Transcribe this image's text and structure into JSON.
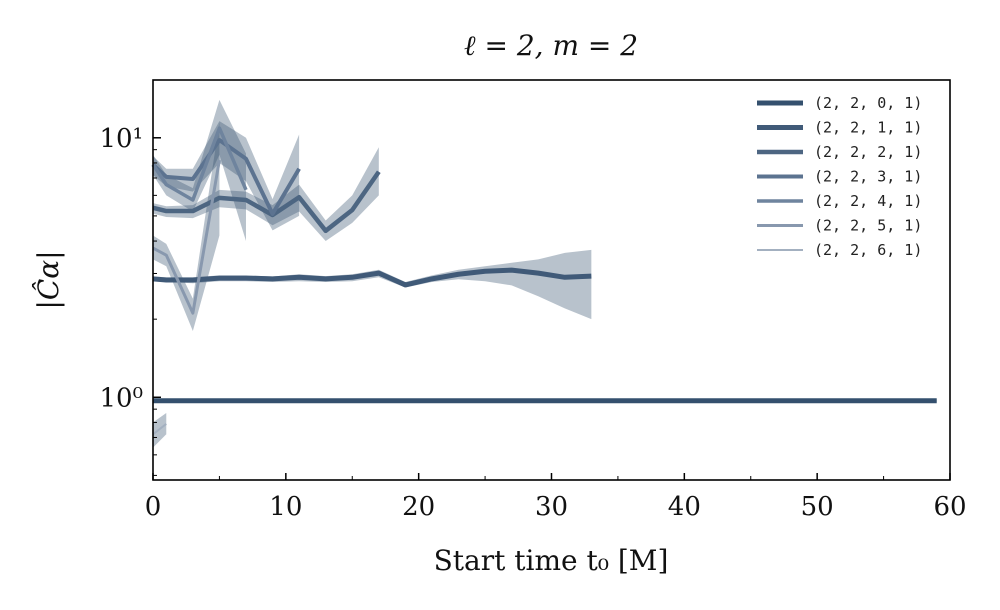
{
  "chart_data": {
    "type": "line",
    "title": "ℓ = 2, m = 2",
    "xlabel": "Start time t₀ [M]",
    "ylabel": "|Ĉα|",
    "xlim": [
      0,
      60
    ],
    "ylim": [
      0.48,
      16.7
    ],
    "yscale": "log",
    "xticks": [
      0,
      10,
      20,
      30,
      40,
      50,
      60
    ],
    "yticks": [
      {
        "v": 1,
        "label": "10⁰"
      },
      {
        "v": 10,
        "label": "10¹"
      }
    ],
    "legend_position": "top-right",
    "series": [
      {
        "name": "(2, 2, 0, 1)",
        "color": "#34506e",
        "x": [
          0,
          59
        ],
        "y": [
          0.97,
          0.97
        ],
        "lo": [
          0.96,
          0.96
        ],
        "hi": [
          0.98,
          0.98
        ]
      },
      {
        "name": "(2, 2, 1, 1)",
        "color": "#405a78",
        "x": [
          0,
          1,
          3,
          5,
          7,
          9,
          11,
          13,
          15,
          17,
          19,
          21,
          23,
          25,
          27,
          29,
          31,
          33
        ],
        "y": [
          2.86,
          2.83,
          2.83,
          2.88,
          2.88,
          2.86,
          2.9,
          2.86,
          2.9,
          3.01,
          2.71,
          2.86,
          2.98,
          3.06,
          3.09,
          3.01,
          2.9,
          2.93
        ],
        "lo": [
          2.8,
          2.78,
          2.75,
          2.8,
          2.8,
          2.78,
          2.8,
          2.78,
          2.8,
          2.9,
          2.65,
          2.78,
          2.85,
          2.8,
          2.7,
          2.45,
          2.2,
          2.0
        ],
        "hi": [
          2.92,
          2.9,
          2.9,
          2.95,
          2.95,
          2.92,
          2.98,
          2.93,
          2.98,
          3.1,
          2.78,
          2.95,
          3.1,
          3.2,
          3.3,
          3.4,
          3.6,
          3.7
        ]
      },
      {
        "name": "(2, 2, 2, 1)",
        "color": "#4d6682",
        "x": [
          0,
          1,
          3,
          5,
          7,
          9,
          11,
          13,
          15,
          17
        ],
        "y": [
          5.37,
          5.22,
          5.22,
          5.87,
          5.76,
          5.04,
          5.9,
          4.38,
          5.27,
          7.4
        ],
        "lo": [
          5.1,
          4.95,
          4.9,
          5.4,
          5.3,
          4.6,
          5.2,
          4.0,
          4.7,
          6.0
        ],
        "hi": [
          5.6,
          5.45,
          5.5,
          6.3,
          6.2,
          5.5,
          6.6,
          4.8,
          6.0,
          9.2
        ]
      },
      {
        "name": "(2, 2, 3, 1)",
        "color": "#5c7390",
        "x": [
          0,
          1,
          3,
          5,
          7,
          9,
          11
        ],
        "y": [
          7.87,
          7.07,
          6.94,
          9.8,
          8.3,
          5.09,
          7.6
        ],
        "lo": [
          7.2,
          6.5,
          6.2,
          8.0,
          6.8,
          4.4,
          5.0
        ],
        "hi": [
          8.5,
          7.6,
          7.6,
          11.6,
          10.0,
          5.8,
          10.3
        ]
      },
      {
        "name": "(2, 2, 4, 1)",
        "color": "#6f849e",
        "x": [
          0,
          1,
          3,
          5,
          7
        ],
        "y": [
          7.9,
          6.6,
          5.76,
          10.9,
          6.3
        ],
        "lo": [
          7.2,
          6.0,
          5.2,
          8.6,
          4.0
        ],
        "hi": [
          8.6,
          7.2,
          6.4,
          14.0,
          8.7
        ]
      },
      {
        "name": "(2, 2, 5, 1)",
        "color": "#8898ae",
        "x": [
          0,
          1,
          3,
          5
        ],
        "y": [
          3.76,
          3.53,
          2.11,
          8.2
        ],
        "lo": [
          3.4,
          3.2,
          1.8,
          4.2
        ],
        "hi": [
          4.2,
          3.9,
          2.4,
          11.5
        ]
      },
      {
        "name": "(2, 2, 6, 1)",
        "color": "#a3b0c0",
        "x": [
          0,
          1
        ],
        "y": [
          0.72,
          0.79
        ],
        "lo": [
          0.64,
          0.72
        ],
        "hi": [
          0.8,
          0.87
        ]
      }
    ]
  }
}
